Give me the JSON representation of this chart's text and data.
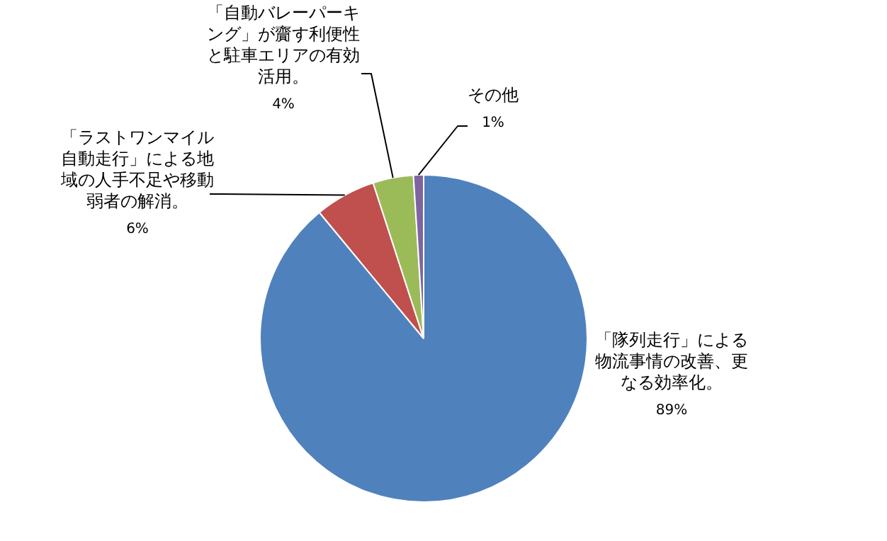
{
  "chart_data": {
    "type": "pie",
    "categories": [
      "「隊列走行」による物流事情の改善、更なる効率化。",
      "「ラストワンマイル自動走行」による地域の人手不足や移動弱者の解消。",
      "「自動バレーパーキング」が齎す利便性と駐車エリアの有効活用。",
      "その他"
    ],
    "values": [
      89,
      6,
      4,
      1
    ],
    "colors": [
      "#4f81bd",
      "#c0504d",
      "#9bbb59",
      "#8064a2"
    ],
    "value_labels": [
      "89%",
      "6%",
      "4%",
      "1%"
    ],
    "legend": false
  }
}
